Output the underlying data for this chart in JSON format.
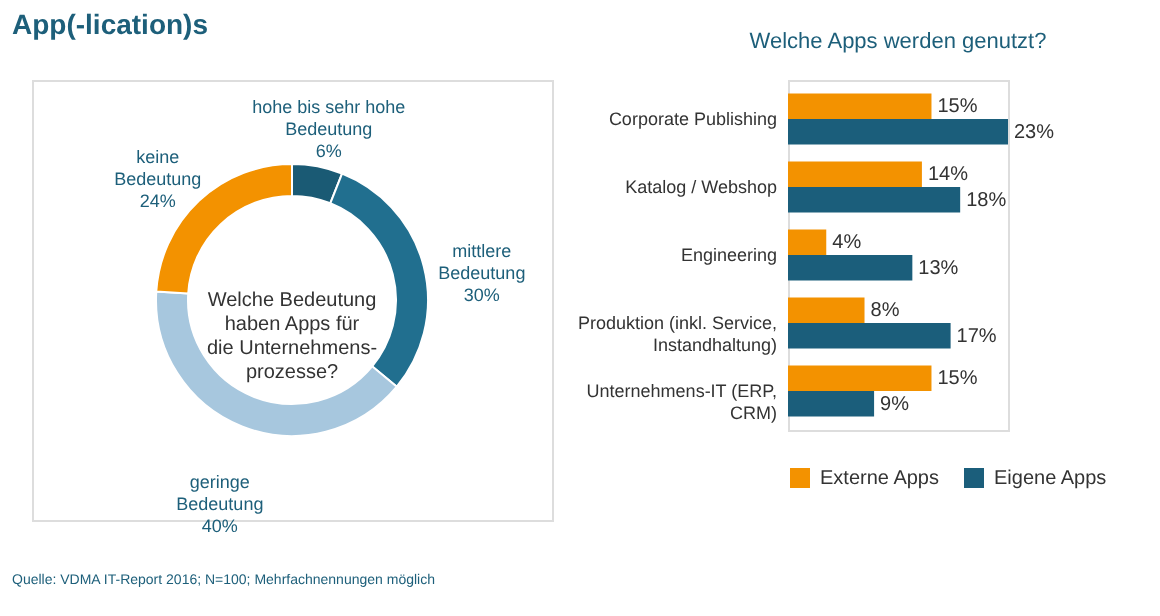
{
  "chart_data": [
    {
      "type": "donut",
      "title": "App(-lication)s",
      "categories": [
        "hohe bis sehr hohe Bedeutung",
        "mittlere Bedeutung",
        "geringe Bedeutung",
        "keine Bedeutung"
      ],
      "values": [
        6,
        30,
        40,
        24
      ],
      "value_labels": [
        "6%",
        "30%",
        "40%",
        "24%"
      ],
      "colors": [
        "#1a5a74",
        "#216f8f",
        "#a7c7de",
        "#f39200"
      ],
      "annotations": [
        "Welche Bedeutung haben Apps für die Unternehmens-prozesse?",
        "Quelle: VDMA IT-Report 2016; N=100; Mehrfachnennungen möglich"
      ],
      "legend": false
    },
    {
      "type": "bar",
      "orientation": "horizontal",
      "title": "Welche Apps werden genutzt?",
      "categories": [
        "Corporate Publishing",
        "Katalog / Webshop",
        "Engineering",
        "Produktion (inkl. Service, Instandhaltung)",
        "Unternehmens-IT (ERP, CRM)"
      ],
      "series": [
        {
          "name": "Externe Apps",
          "color": "#f39200",
          "values": [
            15,
            14,
            4,
            8,
            15
          ],
          "value_labels": [
            "15%",
            "14%",
            "4%",
            "8%",
            "15%"
          ]
        },
        {
          "name": "Eigene Apps",
          "color": "#1b5e7b",
          "values": [
            23,
            18,
            13,
            17,
            9
          ],
          "value_labels": [
            "23%",
            "18%",
            "13%",
            "17%",
            "9%"
          ]
        }
      ],
      "legend": "bottom",
      "grid": false
    }
  ]
}
